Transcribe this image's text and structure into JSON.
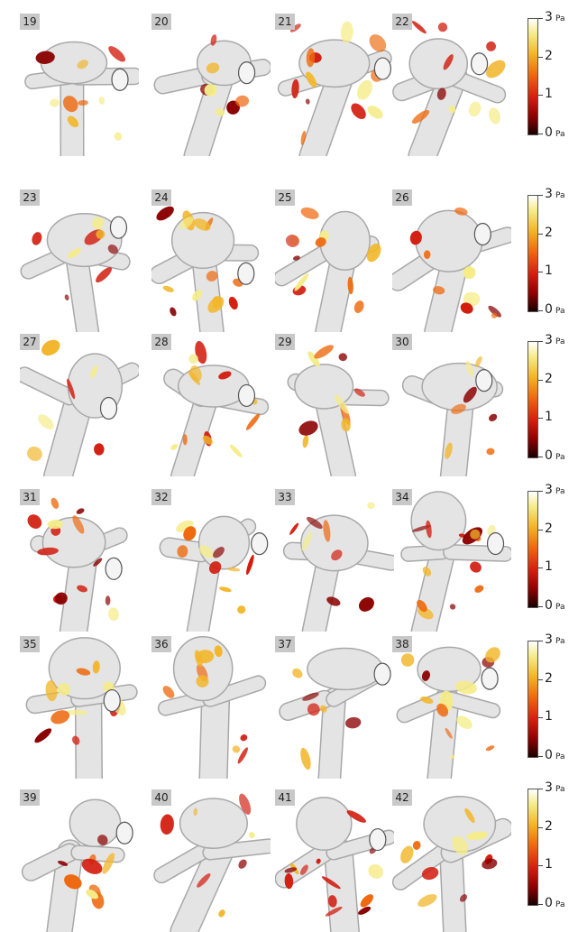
{
  "panels": [
    {
      "id": "19"
    },
    {
      "id": "20"
    },
    {
      "id": "21"
    },
    {
      "id": "22"
    },
    {
      "id": "23"
    },
    {
      "id": "24"
    },
    {
      "id": "25"
    },
    {
      "id": "26"
    },
    {
      "id": "27"
    },
    {
      "id": "28"
    },
    {
      "id": "29"
    },
    {
      "id": "30"
    },
    {
      "id": "31"
    },
    {
      "id": "32"
    },
    {
      "id": "33"
    },
    {
      "id": "34"
    },
    {
      "id": "35"
    },
    {
      "id": "36"
    },
    {
      "id": "37"
    },
    {
      "id": "38"
    },
    {
      "id": "39"
    },
    {
      "id": "40"
    },
    {
      "id": "41"
    },
    {
      "id": "42"
    }
  ],
  "colorbar": {
    "ticks": [
      "3",
      "2",
      "1",
      "0"
    ],
    "unit": "Pa",
    "colors": {
      "low": "#1a0000",
      "dark_red": "#8a0000",
      "red": "#d21e10",
      "orange": "#ee6a10",
      "gold": "#f2b62a",
      "pale_yellow": "#f5ec88",
      "high": "#ffffff"
    }
  },
  "palette": {
    "vessel": "#e4e4e4",
    "vessel_edge": "#a8a8a8",
    "spot_colors": [
      "#f5ec88",
      "#f2b62a",
      "#ee6a10",
      "#d21e10",
      "#8a0000"
    ]
  }
}
